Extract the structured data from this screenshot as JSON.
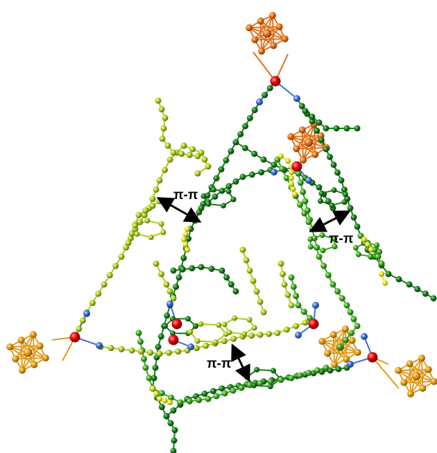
{
  "labels": {
    "pi_left": "π-π",
    "pi_right": "π-π",
    "pi_bottom": "π-π"
  },
  "colors": {
    "metal_center": "#d40000",
    "nitrogen": "#3a6fd0",
    "cluster_orange": "#e0701a",
    "cluster_gold": "#e09a1a",
    "dark_green": "#167a16",
    "mid_green": "#3aa81f",
    "yellow_green": "#a8cc1e",
    "yellow": "#e6e61e",
    "arrow": "#000000"
  }
}
